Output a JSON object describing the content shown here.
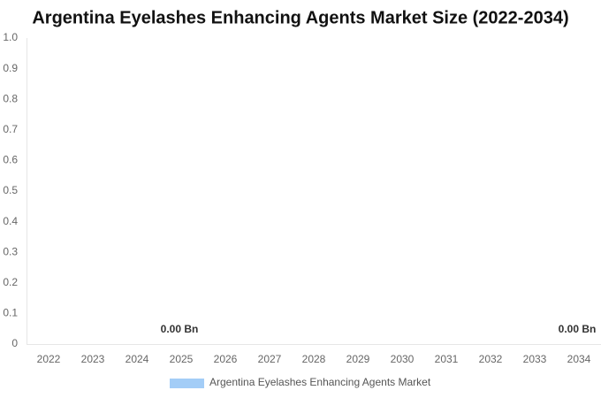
{
  "chart_data": {
    "type": "bar",
    "title": "Argentina Eyelashes Enhancing Agents Market Size (2022-2034)",
    "categories": [
      "2022",
      "2023",
      "2024",
      "2025",
      "2026",
      "2027",
      "2028",
      "2029",
      "2030",
      "2031",
      "2032",
      "2033",
      "2034"
    ],
    "series": [
      {
        "name": "Argentina Eyelashes Enhancing Agents Market",
        "color": "#a3cdf7",
        "values": [
          0,
          0,
          0,
          0,
          0,
          0,
          0,
          0,
          0,
          0,
          0,
          0,
          0
        ],
        "value_labels": [
          null,
          null,
          null,
          "0.00 Bn",
          null,
          null,
          null,
          null,
          null,
          null,
          null,
          null,
          "0.00 Bn"
        ]
      }
    ],
    "ylim": [
      0,
      1
    ],
    "yticks": [
      0,
      0.1,
      0.2,
      0.3,
      0.4,
      0.5,
      0.6,
      0.7,
      0.8,
      0.9,
      {
        "value": 1,
        "label": "1.0"
      }
    ],
    "grid": false
  }
}
